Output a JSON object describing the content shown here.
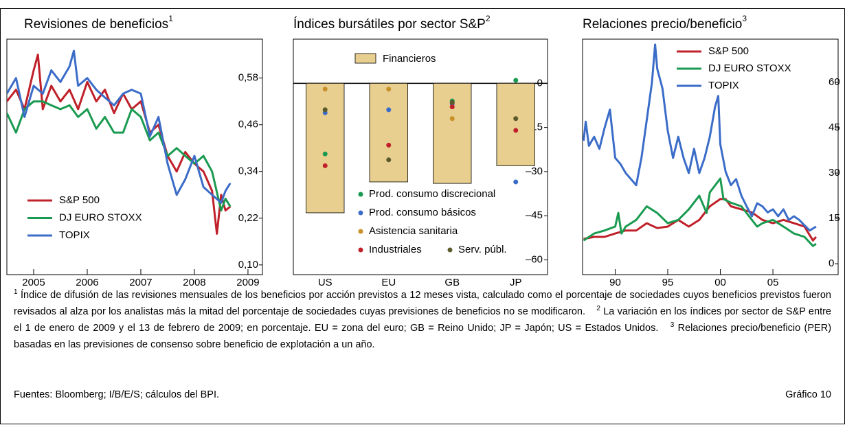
{
  "chart_data": [
    {
      "type": "line",
      "title": "Revisiones de beneficios",
      "title_note": "1",
      "ylim": [
        0.075,
        0.68
      ],
      "yticks": [
        {
          "value": 0.1,
          "label": "0,10"
        },
        {
          "value": 0.22,
          "label": "0,22"
        },
        {
          "value": 0.34,
          "label": "0,34"
        },
        {
          "value": 0.46,
          "label": "0,46"
        },
        {
          "value": 0.58,
          "label": "0,58"
        }
      ],
      "xlim": [
        2005,
        2009.77
      ],
      "xticks": [
        {
          "value": 2005.5,
          "label": "2005"
        },
        {
          "value": 2006.5,
          "label": "2006"
        },
        {
          "value": 2007.5,
          "label": "2007"
        },
        {
          "value": 2008.5,
          "label": "2008"
        },
        {
          "value": 2009.5,
          "label": "2009"
        }
      ],
      "series": [
        {
          "name": "S&P 500",
          "color": "#c0202a",
          "x": [
            2005.0,
            2005.17,
            2005.33,
            2005.5,
            2005.58,
            2005.67,
            2005.83,
            2006.0,
            2006.17,
            2006.33,
            2006.5,
            2006.67,
            2006.83,
            2007.0,
            2007.17,
            2007.33,
            2007.5,
            2007.67,
            2007.83,
            2008.0,
            2008.17,
            2008.33,
            2008.5,
            2008.67,
            2008.83,
            2008.92,
            2009.0,
            2009.08,
            2009.17
          ],
          "values": [
            0.52,
            0.55,
            0.5,
            0.6,
            0.64,
            0.5,
            0.56,
            0.52,
            0.55,
            0.5,
            0.57,
            0.52,
            0.55,
            0.49,
            0.54,
            0.5,
            0.52,
            0.44,
            0.46,
            0.38,
            0.34,
            0.39,
            0.36,
            0.34,
            0.29,
            0.18,
            0.28,
            0.24,
            0.25
          ]
        },
        {
          "name": "DJ EURO STOXX",
          "color": "#1a9a50",
          "x": [
            2005.0,
            2005.17,
            2005.33,
            2005.5,
            2005.67,
            2005.83,
            2006.0,
            2006.17,
            2006.33,
            2006.5,
            2006.67,
            2006.83,
            2007.0,
            2007.17,
            2007.33,
            2007.5,
            2007.67,
            2007.83,
            2008.0,
            2008.17,
            2008.33,
            2008.5,
            2008.67,
            2008.83,
            2009.0,
            2009.08,
            2009.17
          ],
          "values": [
            0.49,
            0.44,
            0.5,
            0.52,
            0.52,
            0.51,
            0.5,
            0.51,
            0.48,
            0.5,
            0.45,
            0.48,
            0.44,
            0.44,
            0.5,
            0.48,
            0.42,
            0.44,
            0.38,
            0.4,
            0.38,
            0.36,
            0.38,
            0.34,
            0.24,
            0.27,
            0.25
          ]
        },
        {
          "name": "TOPIX",
          "color": "#3b6cc8",
          "x": [
            2005.0,
            2005.17,
            2005.33,
            2005.5,
            2005.67,
            2005.83,
            2006.0,
            2006.17,
            2006.25,
            2006.33,
            2006.5,
            2006.67,
            2006.83,
            2007.0,
            2007.17,
            2007.33,
            2007.5,
            2007.67,
            2007.83,
            2008.0,
            2008.17,
            2008.33,
            2008.5,
            2008.67,
            2008.83,
            2009.0,
            2009.08,
            2009.17
          ],
          "values": [
            0.54,
            0.58,
            0.48,
            0.56,
            0.54,
            0.6,
            0.57,
            0.61,
            0.65,
            0.56,
            0.58,
            0.55,
            0.53,
            0.51,
            0.54,
            0.55,
            0.54,
            0.43,
            0.48,
            0.36,
            0.28,
            0.32,
            0.38,
            0.3,
            0.28,
            0.26,
            0.29,
            0.31
          ]
        }
      ]
    },
    {
      "type": "bar",
      "title": "Índices bursátiles por sector S&P",
      "title_note": "2",
      "categories": [
        "US",
        "EU",
        "GB",
        "JP"
      ],
      "ylim": [
        -65,
        15
      ],
      "yticks": [
        0,
        {
          "value": -15,
          "label": "–15"
        },
        {
          "value": -30,
          "label": "–30"
        },
        {
          "value": -45,
          "label": "–45"
        },
        {
          "value": -60,
          "label": "–60"
        }
      ],
      "series": [
        {
          "name": "Financieros",
          "type": "bar",
          "color": "#e8cf90",
          "values": [
            -44,
            -33.5,
            -34,
            -28
          ]
        },
        {
          "name": "Prod. consumo discrecional",
          "type": "scatter",
          "color": "#1a9a50",
          "values": [
            -24,
            null,
            -6,
            1
          ]
        },
        {
          "name": "Prod. consumo básicos",
          "type": "scatter",
          "color": "#3b6cc8",
          "values": [
            -10,
            -9,
            -7,
            -33.5
          ]
        },
        {
          "name": "Asistencia sanitaria",
          "type": "scatter",
          "color": "#c8902a",
          "values": [
            -2,
            -2,
            -12,
            null
          ]
        },
        {
          "name": "Industriales",
          "type": "scatter",
          "color": "#c0202a",
          "values": [
            -28,
            -21,
            -8,
            -16
          ]
        },
        {
          "name": "Serv. públ.",
          "type": "scatter",
          "color": "#5a5a2a",
          "values": [
            -9,
            -26,
            -6.5,
            -12
          ]
        }
      ]
    },
    {
      "type": "line",
      "title": "Relaciones precio/beneficio",
      "title_note": "3",
      "ylim": [
        -3.6,
        74.3
      ],
      "yticks": [
        0,
        15,
        30,
        45,
        60
      ],
      "xlim": [
        1986.9,
        2011.2
      ],
      "xticks": [
        {
          "value": 1990,
          "label": "90"
        },
        {
          "value": 1995,
          "label": "95"
        },
        {
          "value": 2000,
          "label": "00"
        },
        {
          "value": 2005,
          "label": "05"
        }
      ],
      "series": [
        {
          "name": "S&P 500",
          "color": "#c0202a",
          "x": [
            1987,
            1988,
            1989,
            1990,
            1991,
            1992,
            1993,
            1994,
            1995,
            1996,
            1997,
            1998,
            1999,
            2000,
            2000.5,
            2001,
            2002,
            2003,
            2004,
            2005,
            2006,
            2007,
            2008,
            2008.8,
            2009.1
          ],
          "values": [
            8.2,
            8.9,
            8.9,
            10,
            11,
            11,
            13.4,
            11.8,
            12.3,
            14.5,
            12.3,
            14.5,
            19,
            21.4,
            21.4,
            19,
            18,
            17,
            14.5,
            13.4,
            14.5,
            13.4,
            12.3,
            7.7,
            8.9
          ]
        },
        {
          "name": "DJ EURO STOXX",
          "color": "#1a9a50",
          "x": [
            1987,
            1988,
            1989,
            1990,
            1990.3,
            1990.6,
            1991,
            1992,
            1993,
            1994,
            1995,
            1996,
            1997,
            1998,
            1998.7,
            1999,
            2000,
            2000.3,
            2001,
            2002,
            2003,
            2003.5,
            2004,
            2005,
            2006,
            2007,
            2008,
            2008.8,
            2009.1
          ],
          "values": [
            7.7,
            10,
            11,
            12.3,
            16.8,
            10,
            12.3,
            14.5,
            19,
            16.8,
            13.4,
            14.5,
            18,
            22.5,
            16.8,
            23.6,
            28.2,
            21.4,
            20.2,
            19,
            14.5,
            12.3,
            13.4,
            14.5,
            12.3,
            10,
            8.9,
            5.9,
            6.6
          ]
        },
        {
          "name": "TOPIX",
          "color": "#3b6cc8",
          "x": [
            1987,
            1987.2,
            1987.5,
            1988,
            1988.5,
            1989,
            1989.5,
            1990,
            1990.5,
            1991,
            1991.5,
            1992,
            1992.5,
            1993,
            1993.5,
            1993.8,
            1994,
            1994.5,
            1995,
            1995.5,
            1996,
            1996.5,
            1997,
            1997.5,
            1998,
            1998.5,
            1999,
            1999.5,
            1999.8,
            2000,
            2000.5,
            2001,
            2001.5,
            2002,
            2002.5,
            2003,
            2003.5,
            2004,
            2004.5,
            2005,
            2005.5,
            2006,
            2006.5,
            2007,
            2007.5,
            2008,
            2008.5,
            2009.1
          ],
          "values": [
            40.7,
            47,
            39,
            42,
            38,
            45,
            51,
            35,
            33,
            30,
            28,
            26,
            35,
            47.5,
            60,
            72.5,
            64.5,
            58,
            44,
            35,
            42,
            35,
            30,
            38,
            30,
            35,
            42,
            52,
            55.5,
            39.5,
            30.5,
            26,
            28,
            22.5,
            19,
            15.7,
            20,
            19,
            17,
            18,
            15.7,
            18,
            14.5,
            15.7,
            14.5,
            12.7,
            11,
            12.3
          ]
        }
      ]
    }
  ],
  "footnotes": [
    {
      "mark": "1",
      "text": "Índice de difusión de las revisiones mensuales de los beneficios por acción previstos a 12 meses vista, calculado como el porcentaje de sociedades cuyos beneficios previstos fueron revisados al alza por los analistas más la mitad del porcentaje de sociedades cuyas previsiones de beneficios no se modificaron."
    },
    {
      "mark": "2",
      "text": "La variación en los índices por sector de S&P entre el 1 de enero de 2009 y el 13 de febrero de 2009; en porcentaje. EU = zona del euro; GB = Reino Unido; JP = Japón; US = Estados Unidos."
    },
    {
      "mark": "3",
      "text": "Relaciones precio/beneficio (PER) basadas en las previsiones de consenso sobre beneficio de explotación a un año."
    }
  ],
  "sources": "Fuentes: Bloomberg; I/B/E/S; cálculos del BPI.",
  "figure_label": "Gráfico 10"
}
